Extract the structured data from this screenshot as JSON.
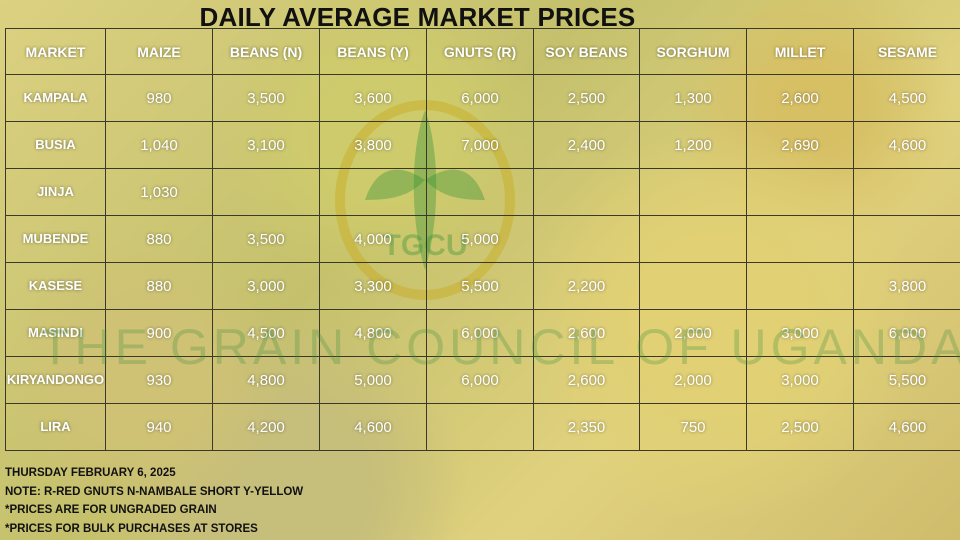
{
  "title": "DAILY AVERAGE MARKET PRICES",
  "watermark": "THE GRAIN COUNCIL OF UGANDA",
  "logo_text": "TGCU",
  "columns": [
    "MARKET",
    "MAIZE",
    "BEANS (N)",
    "BEANS (Y)",
    "GNUTS (R)",
    "SOY BEANS",
    "SORGHUM",
    "MILLET",
    "SESAME"
  ],
  "rows": [
    [
      "KAMPALA",
      "980",
      "3,500",
      "3,600",
      "6,000",
      "2,500",
      "1,300",
      "2,600",
      "4,500"
    ],
    [
      "BUSIA",
      "1,040",
      "3,100",
      "3,800",
      "7,000",
      "2,400",
      "1,200",
      "2,690",
      "4,600"
    ],
    [
      "JINJA",
      "1,030",
      "",
      "",
      "",
      "",
      "",
      "",
      ""
    ],
    [
      "MUBENDE",
      "880",
      "3,500",
      "4,000",
      "5,000",
      "",
      "",
      "",
      ""
    ],
    [
      "KASESE",
      "880",
      "3,000",
      "3,300",
      "5,500",
      "2,200",
      "",
      "",
      "3,800"
    ],
    [
      "MASINDI",
      "900",
      "4,500",
      "4,800",
      "6,000",
      "2,600",
      "2,000",
      "3,000",
      "6,000"
    ],
    [
      "KIRYANDONGO",
      "930",
      "4,800",
      "5,000",
      "6,000",
      "2,600",
      "2,000",
      "3,000",
      "5,500"
    ],
    [
      "LIRA",
      "940",
      "4,200",
      "4,600",
      "",
      "2,350",
      "750",
      "2,500",
      "4,600"
    ]
  ],
  "notes": {
    "date": "THURSDAY FEBRUARY 6, 2025",
    "legend": "NOTE: R-RED GNUTS  N-NAMBALE SHORT  Y-YELLOW",
    "ungraded": "*PRICES ARE FOR UNGRADED GRAIN",
    "bulk": "*PRICES FOR BULK PURCHASES AT STORES"
  },
  "colors": {
    "grid_line": "#3b3a2a",
    "cell_text": "#ffffff",
    "title_text": "#111111",
    "watermark": "#3c8c3c"
  }
}
